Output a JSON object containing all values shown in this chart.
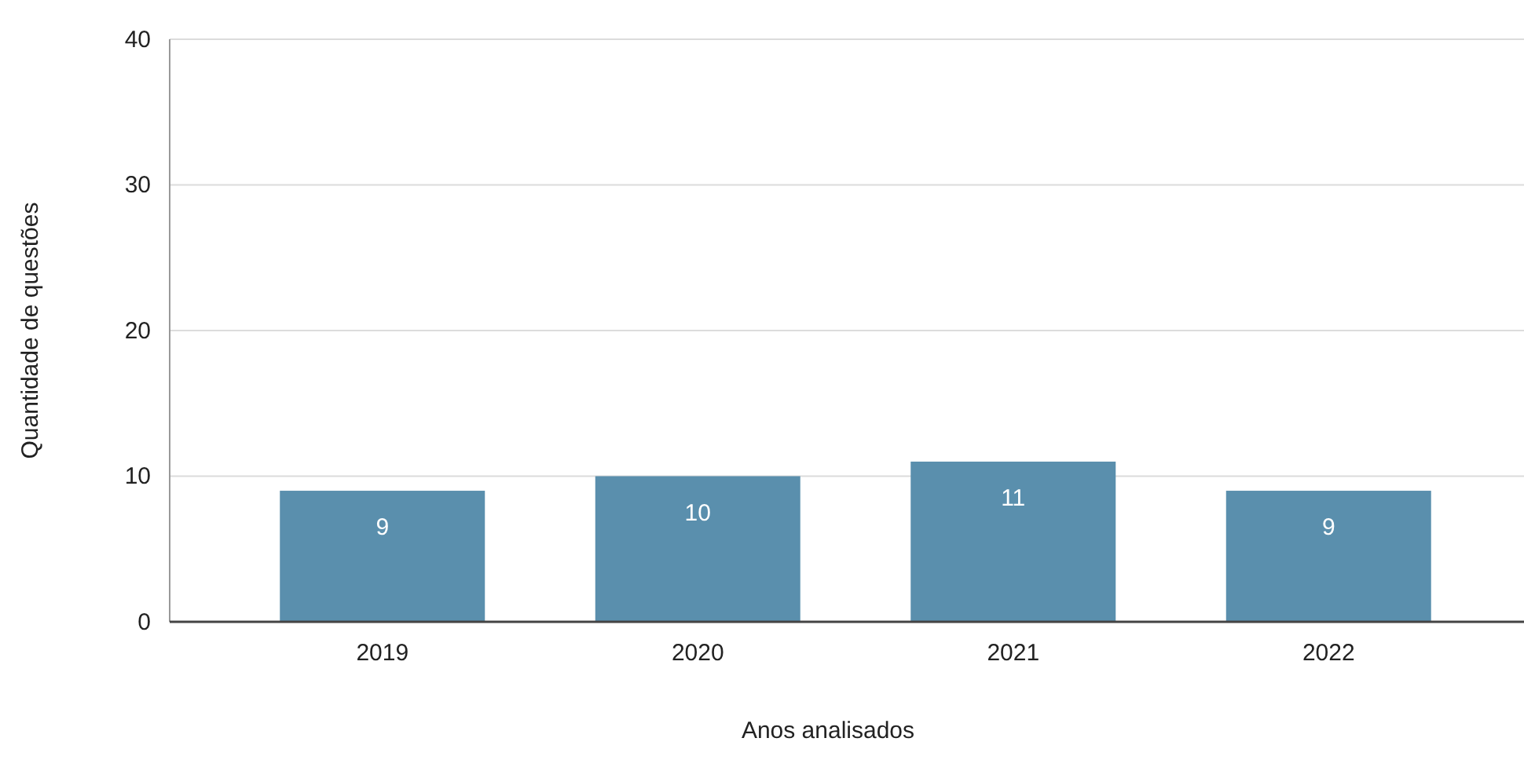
{
  "chart_data": {
    "type": "bar",
    "xlabel": "Anos analisados",
    "ylabel": "Quantidade de questões",
    "categories": [
      "2019",
      "2020",
      "2021",
      "2022"
    ],
    "values": [
      9,
      10,
      11,
      9
    ],
    "color": "#5a8fad",
    "ylim": [
      0,
      40
    ],
    "yticks": [
      0,
      10,
      20,
      30,
      40
    ],
    "grid": "y",
    "data_labels": true
  }
}
